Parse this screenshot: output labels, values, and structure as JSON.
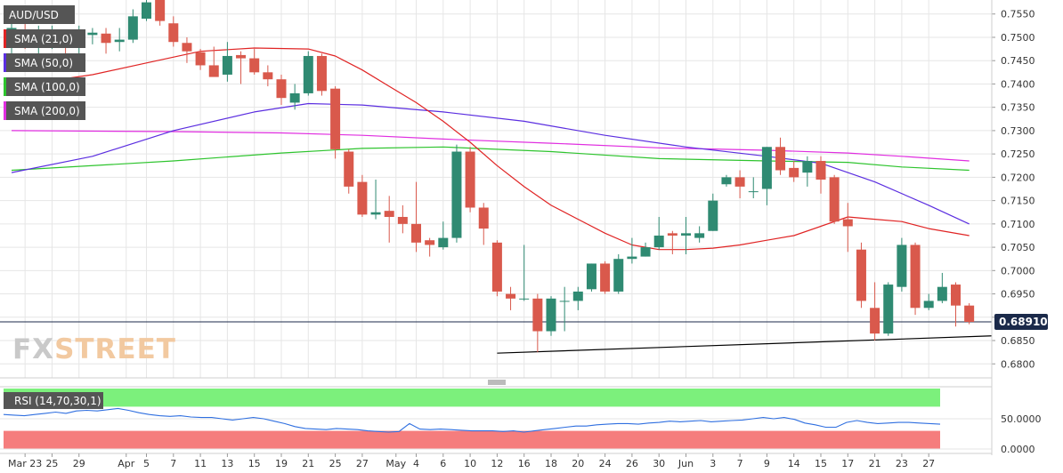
{
  "symbol": "AUD/USD",
  "current_price_label": "0.689105",
  "watermark": {
    "text_fx": "FX",
    "text_street": "STREET"
  },
  "colors": {
    "bull": "#2f8a72",
    "bear": "#d9594c",
    "sma21": "#e02424",
    "sma50": "#5b2ee0",
    "sma100": "#2ec42e",
    "sma200": "#e02ee0",
    "rsi_line": "#2f6fe0",
    "rsi_overbought": "#7cf07c",
    "rsi_oversold": "#f57d7d",
    "grid": "#e6e6e6",
    "price_line": "#1b2a4a",
    "trendline": "#000000"
  },
  "indicators": [
    {
      "label": "SMA (21,0)",
      "color_key": "sma21"
    },
    {
      "label": "SMA (50,0)",
      "color_key": "sma50"
    },
    {
      "label": "SMA (100,0)",
      "color_key": "sma100"
    },
    {
      "label": "SMA (200,0)",
      "color_key": "sma200"
    }
  ],
  "rsi_label": "RSI (14,70,30,1)",
  "chart_data": {
    "type": "candlestick",
    "price_axis": {
      "range": [
        0.677,
        0.758
      ],
      "ticks": [
        "0.7550",
        "0.7500",
        "0.7450",
        "0.7400",
        "0.7350",
        "0.7300",
        "0.7250",
        "0.7200",
        "0.7150",
        "0.7100",
        "0.7050",
        "0.7000",
        "0.6950",
        "0.6900",
        "0.6850",
        "0.6800"
      ],
      "tick_values": [
        0.755,
        0.75,
        0.745,
        0.74,
        0.735,
        0.73,
        0.725,
        0.72,
        0.715,
        0.71,
        0.705,
        0.7,
        0.695,
        0.69,
        0.685,
        0.68
      ]
    },
    "x_axis": {
      "labels": [
        "Mar 23",
        "25",
        "29",
        "Apr",
        "5",
        "7",
        "11",
        "13",
        "15",
        "19",
        "21",
        "25",
        "27",
        "May",
        "4",
        "6",
        "10",
        "12",
        "16",
        "18",
        "20",
        "24",
        "26",
        "30",
        "Jun",
        "3",
        "7",
        "9",
        "14",
        "15",
        "17",
        "21",
        "23",
        "27"
      ],
      "label_bar_index": [
        1,
        3,
        5,
        8.5,
        10,
        12,
        14,
        16,
        18,
        20,
        22,
        24,
        26,
        28.5,
        30,
        32,
        34,
        36,
        38,
        40,
        42,
        44,
        46,
        48,
        50,
        52,
        54,
        56,
        58,
        60,
        62,
        64,
        66,
        68
      ]
    },
    "candles": [
      {
        "o": 0.749,
        "h": 0.754,
        "l": 0.746,
        "c": 0.752
      },
      {
        "o": 0.7515,
        "h": 0.7545,
        "l": 0.7475,
        "c": 0.7485
      },
      {
        "o": 0.7485,
        "h": 0.7525,
        "l": 0.7445,
        "c": 0.7495
      },
      {
        "o": 0.7495,
        "h": 0.7525,
        "l": 0.7475,
        "c": 0.7505
      },
      {
        "o": 0.7502,
        "h": 0.751,
        "l": 0.7465,
        "c": 0.7492
      },
      {
        "o": 0.749,
        "h": 0.7525,
        "l": 0.746,
        "c": 0.7505
      },
      {
        "o": 0.7505,
        "h": 0.752,
        "l": 0.7485,
        "c": 0.751
      },
      {
        "o": 0.7508,
        "h": 0.752,
        "l": 0.7465,
        "c": 0.7488
      },
      {
        "o": 0.749,
        "h": 0.752,
        "l": 0.747,
        "c": 0.7495
      },
      {
        "o": 0.7495,
        "h": 0.756,
        "l": 0.7488,
        "c": 0.7545
      },
      {
        "o": 0.754,
        "h": 0.7585,
        "l": 0.7535,
        "c": 0.7575
      },
      {
        "o": 0.7585,
        "h": 0.759,
        "l": 0.7525,
        "c": 0.7535
      },
      {
        "o": 0.753,
        "h": 0.7545,
        "l": 0.748,
        "c": 0.749
      },
      {
        "o": 0.7488,
        "h": 0.75,
        "l": 0.7445,
        "c": 0.747
      },
      {
        "o": 0.7468,
        "h": 0.7475,
        "l": 0.743,
        "c": 0.744
      },
      {
        "o": 0.744,
        "h": 0.748,
        "l": 0.742,
        "c": 0.7415
      },
      {
        "o": 0.742,
        "h": 0.749,
        "l": 0.7405,
        "c": 0.746
      },
      {
        "o": 0.7462,
        "h": 0.747,
        "l": 0.74,
        "c": 0.7455
      },
      {
        "o": 0.7455,
        "h": 0.7475,
        "l": 0.742,
        "c": 0.7425
      },
      {
        "o": 0.7425,
        "h": 0.744,
        "l": 0.7395,
        "c": 0.741
      },
      {
        "o": 0.741,
        "h": 0.742,
        "l": 0.7355,
        "c": 0.737
      },
      {
        "o": 0.736,
        "h": 0.74,
        "l": 0.7345,
        "c": 0.738
      },
      {
        "o": 0.738,
        "h": 0.747,
        "l": 0.7375,
        "c": 0.746
      },
      {
        "o": 0.746,
        "h": 0.7465,
        "l": 0.7375,
        "c": 0.7385
      },
      {
        "o": 0.739,
        "h": 0.7395,
        "l": 0.724,
        "c": 0.726
      },
      {
        "o": 0.7255,
        "h": 0.726,
        "l": 0.7165,
        "c": 0.718
      },
      {
        "o": 0.719,
        "h": 0.7205,
        "l": 0.7115,
        "c": 0.712
      },
      {
        "o": 0.712,
        "h": 0.7195,
        "l": 0.711,
        "c": 0.7125
      },
      {
        "o": 0.7128,
        "h": 0.716,
        "l": 0.706,
        "c": 0.7115
      },
      {
        "o": 0.7115,
        "h": 0.714,
        "l": 0.708,
        "c": 0.71
      },
      {
        "o": 0.71,
        "h": 0.719,
        "l": 0.704,
        "c": 0.706
      },
      {
        "o": 0.7065,
        "h": 0.707,
        "l": 0.703,
        "c": 0.7055
      },
      {
        "o": 0.705,
        "h": 0.7105,
        "l": 0.7045,
        "c": 0.707
      },
      {
        "o": 0.707,
        "h": 0.727,
        "l": 0.706,
        "c": 0.7255
      },
      {
        "o": 0.7255,
        "h": 0.7265,
        "l": 0.7125,
        "c": 0.7135
      },
      {
        "o": 0.7135,
        "h": 0.7145,
        "l": 0.7055,
        "c": 0.709
      },
      {
        "o": 0.706,
        "h": 0.7065,
        "l": 0.6945,
        "c": 0.6955
      },
      {
        "o": 0.695,
        "h": 0.6965,
        "l": 0.6915,
        "c": 0.694
      },
      {
        "o": 0.694,
        "h": 0.7055,
        "l": 0.6935,
        "c": 0.694
      },
      {
        "o": 0.694,
        "h": 0.695,
        "l": 0.6825,
        "c": 0.687
      },
      {
        "o": 0.687,
        "h": 0.6945,
        "l": 0.686,
        "c": 0.694
      },
      {
        "o": 0.6935,
        "h": 0.6965,
        "l": 0.687,
        "c": 0.6935
      },
      {
        "o": 0.6935,
        "h": 0.6965,
        "l": 0.6915,
        "c": 0.6955
      },
      {
        "o": 0.696,
        "h": 0.7015,
        "l": 0.6955,
        "c": 0.7015
      },
      {
        "o": 0.7015,
        "h": 0.702,
        "l": 0.695,
        "c": 0.6955
      },
      {
        "o": 0.6955,
        "h": 0.7035,
        "l": 0.695,
        "c": 0.7025
      },
      {
        "o": 0.7025,
        "h": 0.707,
        "l": 0.7015,
        "c": 0.703
      },
      {
        "o": 0.703,
        "h": 0.706,
        "l": 0.703,
        "c": 0.705
      },
      {
        "o": 0.705,
        "h": 0.7115,
        "l": 0.7045,
        "c": 0.7075
      },
      {
        "o": 0.708,
        "h": 0.7085,
        "l": 0.7035,
        "c": 0.7075
      },
      {
        "o": 0.7075,
        "h": 0.7115,
        "l": 0.7035,
        "c": 0.708
      },
      {
        "o": 0.707,
        "h": 0.7095,
        "l": 0.706,
        "c": 0.708
      },
      {
        "o": 0.7085,
        "h": 0.7165,
        "l": 0.7085,
        "c": 0.715
      },
      {
        "o": 0.7185,
        "h": 0.7205,
        "l": 0.718,
        "c": 0.72
      },
      {
        "o": 0.72,
        "h": 0.7215,
        "l": 0.7155,
        "c": 0.718
      },
      {
        "o": 0.717,
        "h": 0.72,
        "l": 0.7155,
        "c": 0.717
      },
      {
        "o": 0.7175,
        "h": 0.7265,
        "l": 0.714,
        "c": 0.7265
      },
      {
        "o": 0.7265,
        "h": 0.7285,
        "l": 0.7205,
        "c": 0.7215
      },
      {
        "o": 0.722,
        "h": 0.7235,
        "l": 0.719,
        "c": 0.72
      },
      {
        "o": 0.721,
        "h": 0.7245,
        "l": 0.718,
        "c": 0.7235
      },
      {
        "o": 0.7235,
        "h": 0.7245,
        "l": 0.7165,
        "c": 0.7195
      },
      {
        "o": 0.72,
        "h": 0.7205,
        "l": 0.71,
        "c": 0.7105
      },
      {
        "o": 0.711,
        "h": 0.7145,
        "l": 0.704,
        "c": 0.7095
      },
      {
        "o": 0.7045,
        "h": 0.706,
        "l": 0.692,
        "c": 0.6935
      },
      {
        "o": 0.692,
        "h": 0.6975,
        "l": 0.685,
        "c": 0.6865
      },
      {
        "o": 0.6865,
        "h": 0.6975,
        "l": 0.686,
        "c": 0.697
      },
      {
        "o": 0.6965,
        "h": 0.707,
        "l": 0.6955,
        "c": 0.7055
      },
      {
        "o": 0.7055,
        "h": 0.706,
        "l": 0.6905,
        "c": 0.692
      },
      {
        "o": 0.692,
        "h": 0.695,
        "l": 0.6915,
        "c": 0.6935
      },
      {
        "o": 0.6935,
        "h": 0.6995,
        "l": 0.693,
        "c": 0.6965
      },
      {
        "o": 0.697,
        "h": 0.6975,
        "l": 0.688,
        "c": 0.6925
      },
      {
        "o": 0.6925,
        "h": 0.693,
        "l": 0.6885,
        "c": 0.689
      }
    ],
    "sma21": [
      [
        0,
        0.7395
      ],
      [
        6,
        0.742
      ],
      [
        10,
        0.7445
      ],
      [
        14,
        0.747
      ],
      [
        18,
        0.7477
      ],
      [
        22,
        0.7475
      ],
      [
        24,
        0.746
      ],
      [
        26,
        0.743
      ],
      [
        28,
        0.7395
      ],
      [
        30,
        0.736
      ],
      [
        32,
        0.732
      ],
      [
        34,
        0.7275
      ],
      [
        36,
        0.7225
      ],
      [
        38,
        0.718
      ],
      [
        40,
        0.714
      ],
      [
        42,
        0.711
      ],
      [
        44,
        0.708
      ],
      [
        46,
        0.7055
      ],
      [
        48,
        0.7045
      ],
      [
        50,
        0.7045
      ],
      [
        52,
        0.7048
      ],
      [
        54,
        0.7055
      ],
      [
        56,
        0.7065
      ],
      [
        58,
        0.7075
      ],
      [
        60,
        0.7095
      ],
      [
        62,
        0.7115
      ],
      [
        64,
        0.711
      ],
      [
        66,
        0.7105
      ],
      [
        68,
        0.709
      ],
      [
        71,
        0.7075
      ]
    ],
    "sma50": [
      [
        0,
        0.721
      ],
      [
        6,
        0.7245
      ],
      [
        12,
        0.73
      ],
      [
        18,
        0.734
      ],
      [
        22,
        0.7358
      ],
      [
        26,
        0.7355
      ],
      [
        32,
        0.734
      ],
      [
        38,
        0.732
      ],
      [
        44,
        0.729
      ],
      [
        50,
        0.7265
      ],
      [
        56,
        0.7245
      ],
      [
        60,
        0.723
      ],
      [
        64,
        0.719
      ],
      [
        68,
        0.714
      ],
      [
        71,
        0.71
      ]
    ],
    "sma100": [
      [
        0,
        0.7215
      ],
      [
        12,
        0.7235
      ],
      [
        20,
        0.7252
      ],
      [
        26,
        0.7262
      ],
      [
        32,
        0.7265
      ],
      [
        40,
        0.7255
      ],
      [
        48,
        0.724
      ],
      [
        56,
        0.7235
      ],
      [
        62,
        0.7232
      ],
      [
        66,
        0.7222
      ],
      [
        71,
        0.7215
      ]
    ],
    "sma200": [
      [
        0,
        0.73
      ],
      [
        12,
        0.7298
      ],
      [
        20,
        0.7295
      ],
      [
        26,
        0.729
      ],
      [
        32,
        0.7282
      ],
      [
        40,
        0.7273
      ],
      [
        48,
        0.7263
      ],
      [
        56,
        0.7258
      ],
      [
        62,
        0.7252
      ],
      [
        66,
        0.7245
      ],
      [
        71,
        0.7235
      ]
    ],
    "trendline": [
      [
        36,
        0.6823
      ],
      [
        76,
        0.686
      ]
    ],
    "rsi": {
      "ticks": [
        "50.0000",
        "0.0000"
      ],
      "tick_values": [
        50,
        0
      ],
      "range": [
        0,
        100
      ],
      "overbought": 70,
      "oversold": 30,
      "values": [
        57,
        56,
        55,
        57,
        59,
        61,
        59,
        63,
        64,
        63,
        65,
        67,
        64,
        60,
        57,
        55,
        54,
        55,
        53,
        52,
        52,
        50,
        48,
        50,
        52,
        50,
        46,
        42,
        37,
        34,
        33,
        32,
        34,
        33,
        32,
        30,
        29,
        28,
        29,
        42,
        33,
        32,
        33,
        32,
        31,
        30,
        30,
        30,
        29,
        30,
        28,
        30,
        32,
        34,
        36,
        38,
        38,
        40,
        41,
        42,
        42,
        41,
        43,
        44,
        46,
        45,
        46,
        47,
        45,
        46,
        47,
        48,
        50,
        52,
        50,
        52,
        49,
        43,
        40,
        36,
        36,
        44,
        47,
        44,
        42,
        43,
        44,
        44,
        43,
        42,
        41
      ]
    }
  }
}
